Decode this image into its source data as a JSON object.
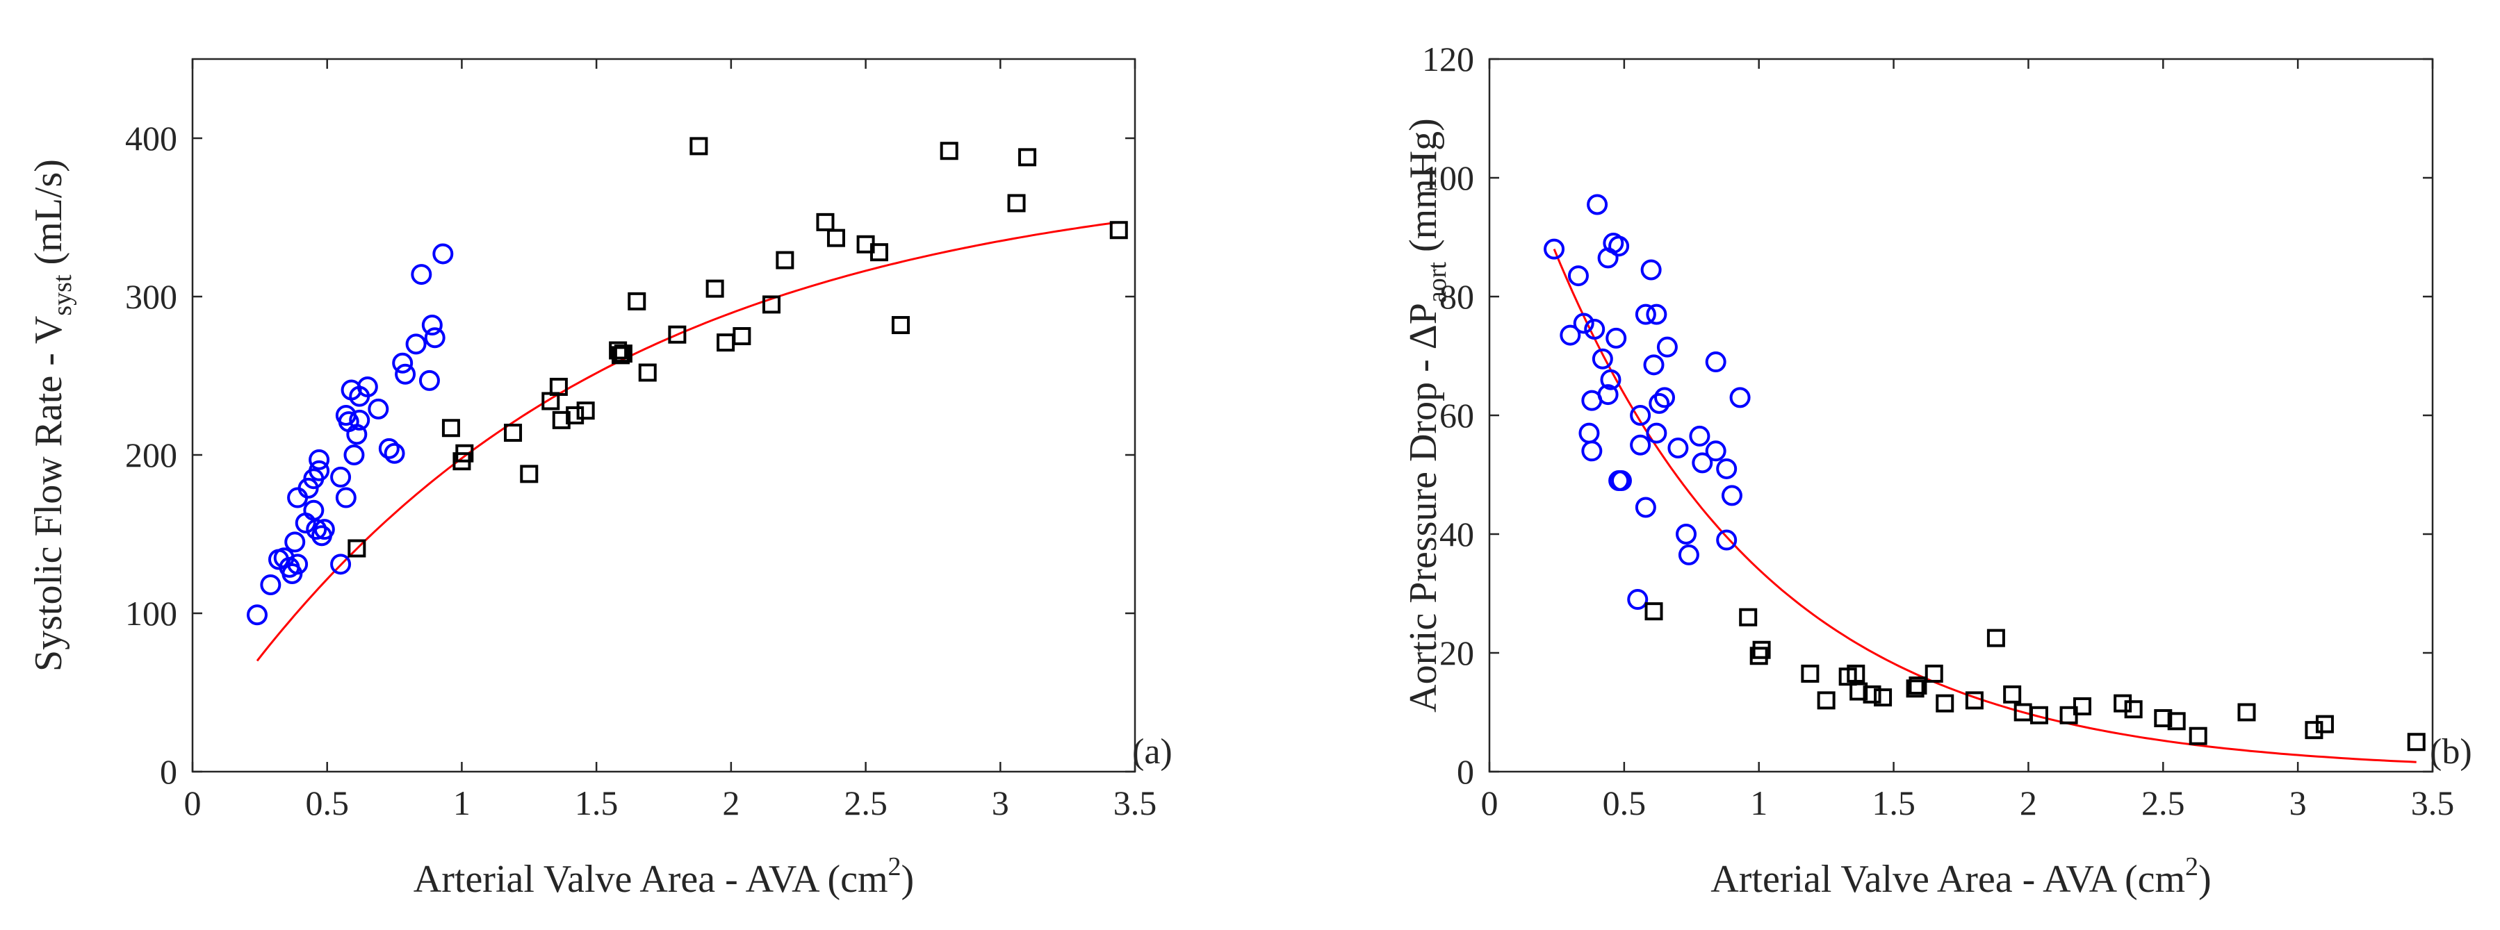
{
  "chart_data": [
    {
      "type": "scatter",
      "panel_label": "(a)",
      "xlabel": {
        "text": "Arterial Valve Area - AVA (cm",
        "sup": "2",
        "suffix": ")"
      },
      "ylabel": {
        "text": "Systolic Flow Rate - V",
        "sub": "syst",
        "suffix": " (mL/s)"
      },
      "xlim": [
        0,
        3.5
      ],
      "ylim": [
        0,
        450
      ],
      "xticks": [
        0,
        0.5,
        1,
        1.5,
        2,
        2.5,
        3,
        3.5
      ],
      "xtick_labels": [
        "0",
        "0.5",
        "1",
        "1.5",
        "2",
        "2.5",
        "3",
        "3.5"
      ],
      "yticks": [
        0,
        100,
        200,
        300,
        400
      ],
      "ytick_labels": [
        "0",
        "100",
        "200",
        "300",
        "400"
      ],
      "grid": false,
      "colors": {
        "circles": "#0000ff",
        "squares": "#000000",
        "fit": "#ff0000"
      },
      "series": [
        {
          "marker": "circle",
          "points": [
            [
              0.24,
              99
            ],
            [
              0.29,
              118
            ],
            [
              0.32,
              134
            ],
            [
              0.34,
              135
            ],
            [
              0.36,
              129
            ],
            [
              0.37,
              125
            ],
            [
              0.38,
              145
            ],
            [
              0.39,
              131
            ],
            [
              0.39,
              173
            ],
            [
              0.42,
              157
            ],
            [
              0.43,
              179
            ],
            [
              0.45,
              185
            ],
            [
              0.45,
              165
            ],
            [
              0.46,
              153
            ],
            [
              0.47,
              190
            ],
            [
              0.47,
              197
            ],
            [
              0.48,
              149
            ],
            [
              0.49,
              153
            ],
            [
              0.55,
              131
            ],
            [
              0.55,
              186
            ],
            [
              0.57,
              173
            ],
            [
              0.57,
              225
            ],
            [
              0.58,
              221
            ],
            [
              0.59,
              241
            ],
            [
              0.6,
              200
            ],
            [
              0.61,
              213
            ],
            [
              0.62,
              237
            ],
            [
              0.62,
              222
            ],
            [
              0.65,
              243
            ],
            [
              0.69,
              229
            ],
            [
              0.73,
              204
            ],
            [
              0.75,
              201
            ],
            [
              0.78,
              258
            ],
            [
              0.79,
              251
            ],
            [
              0.83,
              270
            ],
            [
              0.85,
              314
            ],
            [
              0.88,
              247
            ],
            [
              0.89,
              282
            ],
            [
              0.9,
              274
            ],
            [
              0.93,
              327
            ]
          ]
        },
        {
          "marker": "square",
          "points": [
            [
              0.61,
              141
            ],
            [
              0.96,
              217
            ],
            [
              1.0,
              196
            ],
            [
              1.01,
              201
            ],
            [
              1.19,
              214
            ],
            [
              1.25,
              188
            ],
            [
              1.33,
              234
            ],
            [
              1.36,
              243
            ],
            [
              1.37,
              222
            ],
            [
              1.42,
              225
            ],
            [
              1.46,
              228
            ],
            [
              1.58,
              266
            ],
            [
              1.59,
              263
            ],
            [
              1.6,
              264
            ],
            [
              1.65,
              297
            ],
            [
              1.69,
              252
            ],
            [
              1.8,
              276
            ],
            [
              1.88,
              395
            ],
            [
              1.94,
              305
            ],
            [
              1.98,
              271
            ],
            [
              2.04,
              275
            ],
            [
              2.15,
              295
            ],
            [
              2.2,
              323
            ],
            [
              2.35,
              347
            ],
            [
              2.39,
              337
            ],
            [
              2.5,
              333
            ],
            [
              2.55,
              328
            ],
            [
              2.63,
              282
            ],
            [
              2.81,
              392
            ],
            [
              3.06,
              359
            ],
            [
              3.1,
              388
            ],
            [
              3.44,
              342
            ]
          ]
        }
      ],
      "fit": {
        "type": "line",
        "x_start": 0.24,
        "x_end": 3.44,
        "model": "exponential_rise",
        "a": 380,
        "b": 310,
        "k": 0.7
      }
    },
    {
      "type": "scatter",
      "panel_label": "(b)",
      "xlabel": {
        "text": "Arterial Valve Area - AVA (cm",
        "sup": "2",
        "suffix": ")"
      },
      "ylabel": {
        "text": "Aortic Pressure Drop - ΔP",
        "sub": "aort",
        "suffix": " (mmHg)"
      },
      "xlim": [
        0,
        3.5
      ],
      "ylim": [
        0,
        120
      ],
      "xticks": [
        0,
        0.5,
        1,
        1.5,
        2,
        2.5,
        3,
        3.5
      ],
      "xtick_labels": [
        "0",
        "0.5",
        "1",
        "1.5",
        "2",
        "2.5",
        "3",
        "3.5"
      ],
      "yticks": [
        0,
        20,
        40,
        60,
        80,
        100,
        120
      ],
      "ytick_labels": [
        "0",
        "20",
        "40",
        "60",
        "80",
        "100",
        "120"
      ],
      "grid": false,
      "colors": {
        "circles": "#0000ff",
        "squares": "#000000",
        "fit": "#ff0000"
      },
      "series": [
        {
          "marker": "circle",
          "points": [
            [
              0.24,
              88
            ],
            [
              0.3,
              73.5
            ],
            [
              0.33,
              83.5
            ],
            [
              0.35,
              75.5
            ],
            [
              0.37,
              57
            ],
            [
              0.38,
              62.5
            ],
            [
              0.38,
              54
            ],
            [
              0.39,
              74.5
            ],
            [
              0.4,
              95.5
            ],
            [
              0.42,
              69.5
            ],
            [
              0.44,
              63.5
            ],
            [
              0.44,
              86.5
            ],
            [
              0.45,
              66
            ],
            [
              0.46,
              89
            ],
            [
              0.47,
              73
            ],
            [
              0.48,
              88.5
            ],
            [
              0.48,
              49
            ],
            [
              0.49,
              49
            ],
            [
              0.55,
              29
            ],
            [
              0.56,
              60
            ],
            [
              0.56,
              55
            ],
            [
              0.58,
              44.5
            ],
            [
              0.58,
              77
            ],
            [
              0.6,
              84.5
            ],
            [
              0.61,
              68.5
            ],
            [
              0.62,
              57
            ],
            [
              0.62,
              77
            ],
            [
              0.63,
              62
            ],
            [
              0.65,
              63
            ],
            [
              0.66,
              71.5
            ],
            [
              0.7,
              54.5
            ],
            [
              0.73,
              40
            ],
            [
              0.74,
              36.5
            ],
            [
              0.78,
              56.5
            ],
            [
              0.79,
              52
            ],
            [
              0.84,
              69
            ],
            [
              0.84,
              54
            ],
            [
              0.88,
              51
            ],
            [
              0.88,
              39
            ],
            [
              0.9,
              46.5
            ],
            [
              0.93,
              63
            ]
          ]
        },
        {
          "marker": "square",
          "points": [
            [
              0.61,
              27
            ],
            [
              0.96,
              26
            ],
            [
              1.0,
              19.5
            ],
            [
              1.01,
              20.5
            ],
            [
              1.19,
              16.5
            ],
            [
              1.25,
              12
            ],
            [
              1.33,
              16
            ],
            [
              1.36,
              16.5
            ],
            [
              1.37,
              13.5
            ],
            [
              1.42,
              13
            ],
            [
              1.46,
              12.5
            ],
            [
              1.58,
              14
            ],
            [
              1.59,
              14.5
            ],
            [
              1.65,
              16.5
            ],
            [
              1.69,
              11.5
            ],
            [
              1.8,
              12
            ],
            [
              1.88,
              22.5
            ],
            [
              1.94,
              13
            ],
            [
              1.98,
              10
            ],
            [
              2.04,
              9.5
            ],
            [
              2.15,
              9.5
            ],
            [
              2.2,
              11
            ],
            [
              2.35,
              11.5
            ],
            [
              2.39,
              10.5
            ],
            [
              2.5,
              9
            ],
            [
              2.55,
              8.5
            ],
            [
              2.63,
              6
            ],
            [
              2.81,
              10
            ],
            [
              3.06,
              7
            ],
            [
              3.1,
              8
            ],
            [
              3.44,
              5
            ]
          ]
        }
      ],
      "fit": {
        "type": "line",
        "x_start": 0.24,
        "x_end": 3.44,
        "model": "exponential_decay",
        "a": 88,
        "k": 1.25
      }
    }
  ]
}
